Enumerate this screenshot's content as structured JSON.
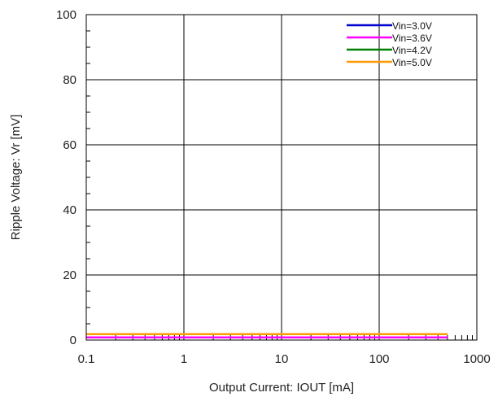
{
  "chart_data": {
    "type": "line",
    "xlabel": "Output  Current: IOUT [mA]",
    "ylabel": "Ripple  Voltage:  Vr [mV]",
    "x_scale": "log",
    "xlim": [
      0.1,
      1000
    ],
    "ylim": [
      0,
      100
    ],
    "x_ticks": [
      "0.1",
      "1",
      "10",
      "100",
      "1000"
    ],
    "y_ticks": [
      "0",
      "20",
      "40",
      "60",
      "80",
      "100"
    ],
    "grid": true,
    "legend_position": "top-right",
    "series": [
      {
        "name": "Vin=3.0V",
        "color": "#0000cc",
        "x": [
          0.1,
          500
        ],
        "y": [
          0.8,
          0.8
        ]
      },
      {
        "name": "Vin=3.6V",
        "color": "#ff00ff",
        "x": [
          0.1,
          500
        ],
        "y": [
          0.8,
          0.8
        ]
      },
      {
        "name": "Vin=4.2V",
        "color": "#008000",
        "x": [
          0.1,
          500
        ],
        "y": [
          1.8,
          1.8
        ]
      },
      {
        "name": "Vin=5.0V",
        "color": "#ff9900",
        "x": [
          0.1,
          500
        ],
        "y": [
          1.8,
          1.8
        ]
      }
    ]
  }
}
